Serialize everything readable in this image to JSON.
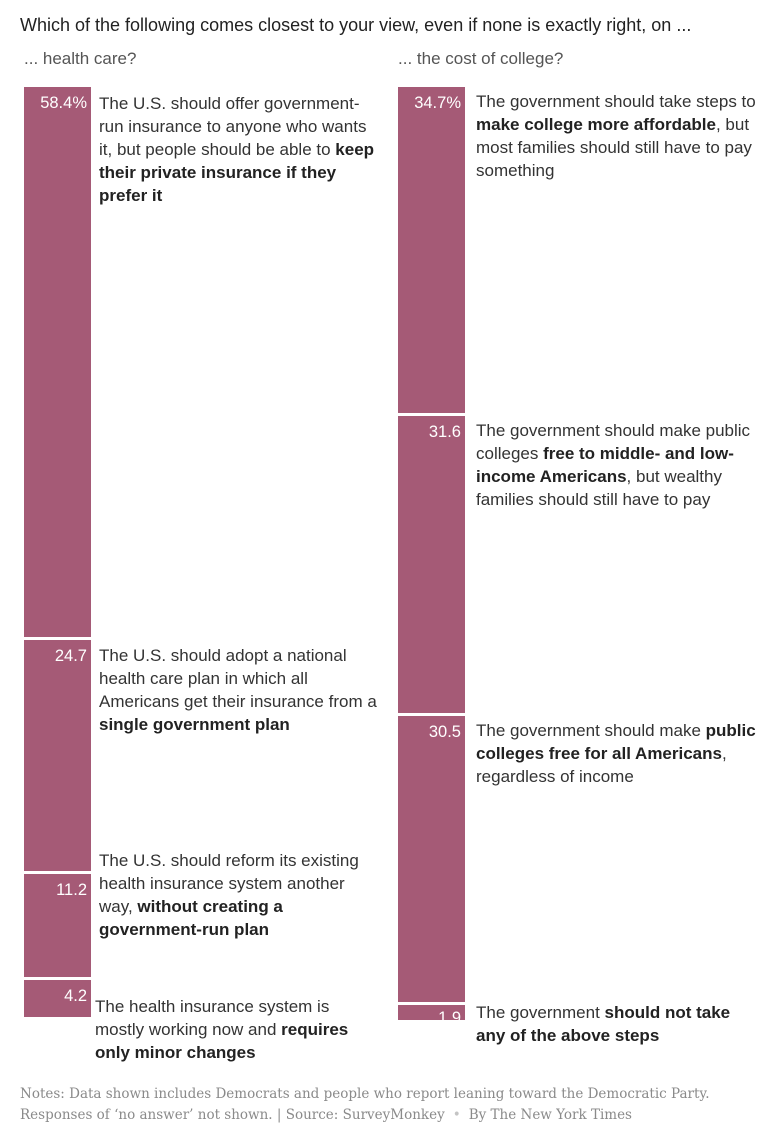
{
  "question": "Which of the following comes closest to your view, even if none is exactly right, on ...",
  "chart_data": [
    {
      "type": "bar",
      "title": "... health care?",
      "ylim": [
        0,
        98.5
      ],
      "items": [
        {
          "value_label": "58.4%",
          "value": 58.4,
          "text_before": "The U.S. should offer government-run insurance to anyone who wants it, but people should be able to ",
          "text_bold": "keep their private insurance if they prefer it",
          "text_after": ""
        },
        {
          "value_label": "24.7",
          "value": 24.7,
          "text_before": "The U.S. should adopt a national health care plan in which all Americans get their insurance from a ",
          "text_bold": "single government plan",
          "text_after": ""
        },
        {
          "value_label": "11.2",
          "value": 11.2,
          "text_before": "The U.S. should reform its existing health insurance system another way, ",
          "text_bold": "without creating a government-run plan",
          "text_after": ""
        },
        {
          "value_label": "4.2",
          "value": 4.2,
          "text_before": "The health insurance system is mostly working now and ",
          "text_bold": "requires only minor changes",
          "text_after": ""
        }
      ]
    },
    {
      "type": "bar",
      "title": "... the cost of college?",
      "ylim": [
        0,
        98.7
      ],
      "items": [
        {
          "value_label": "34.7%",
          "value": 34.7,
          "text_before": "The government should take steps to ",
          "text_bold": "make college more affordable",
          "text_after": ", but most families should still have to pay something"
        },
        {
          "value_label": "31.6",
          "value": 31.6,
          "text_before": "The government should make public colleges ",
          "text_bold": "free to middle- and low-income Americans",
          "text_after": ", but wealthy families should still have to pay"
        },
        {
          "value_label": "30.5",
          "value": 30.5,
          "text_before": "The government should make ",
          "text_bold": "public colleges free for all Americans",
          "text_after": ", regardless of income"
        },
        {
          "value_label": "1.9",
          "value": 1.9,
          "text_before": "The government ",
          "text_bold": "should not take any of the above steps",
          "text_after": ""
        }
      ]
    }
  ],
  "footer": {
    "notes": "Notes: Data shown includes Democrats and people who report leaning toward the Democratic Party. Responses of ‘no answer’ not shown. | Source: SurveyMonkey",
    "separator": "•",
    "byline": "By The New York Times"
  },
  "colors": {
    "bar": "#a55a76",
    "bar_text": "#ffffff"
  }
}
